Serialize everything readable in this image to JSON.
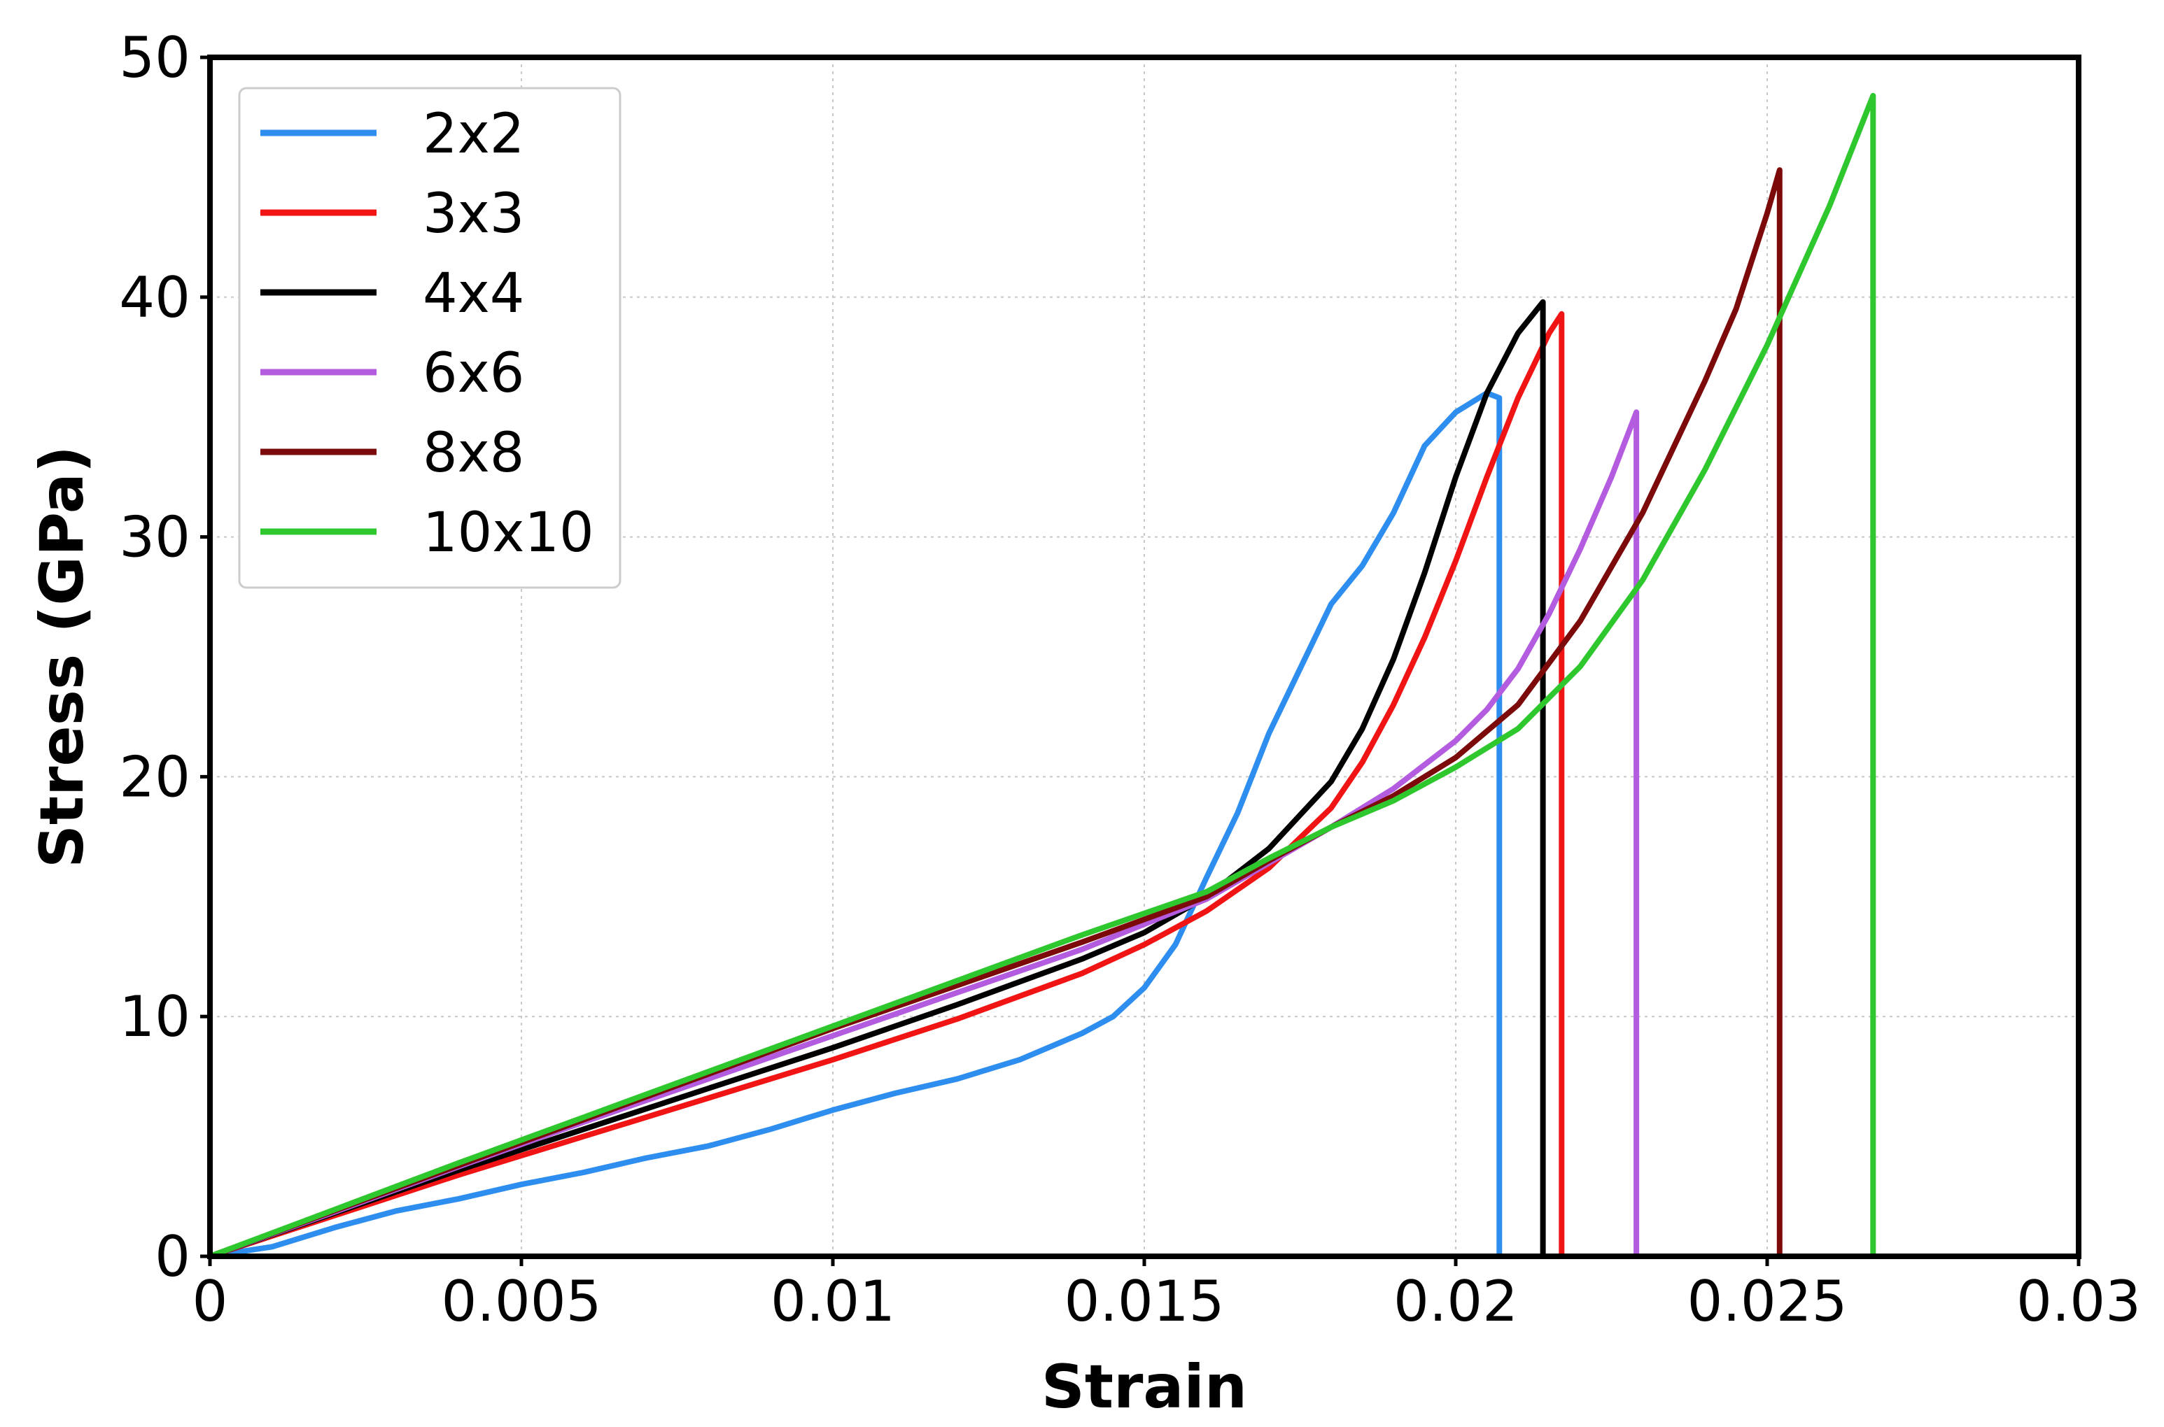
{
  "chart_data": {
    "type": "line",
    "title": "",
    "xlabel": "Strain",
    "ylabel": "Stress (GPa)",
    "xlim": [
      0,
      0.03
    ],
    "ylim": [
      0,
      50
    ],
    "xticks": [
      0,
      0.005,
      0.01,
      0.015,
      0.02,
      0.025,
      0.03
    ],
    "xtick_labels": [
      "0",
      "0.005",
      "0.01",
      "0.015",
      "0.02",
      "0.025",
      "0.03"
    ],
    "yticks": [
      0,
      10,
      20,
      30,
      40,
      50
    ],
    "ytick_labels": [
      "0",
      "10",
      "20",
      "30",
      "40",
      "50"
    ],
    "grid": true,
    "legend_position": "top-left",
    "series": [
      {
        "name": "2x2",
        "color": "#2e8ef0",
        "x": [
          0,
          0.001,
          0.002,
          0.003,
          0.004,
          0.005,
          0.006,
          0.007,
          0.008,
          0.009,
          0.01,
          0.011,
          0.012,
          0.013,
          0.014,
          0.0145,
          0.015,
          0.0155,
          0.016,
          0.0165,
          0.017,
          0.0175,
          0.018,
          0.0185,
          0.019,
          0.0195,
          0.02,
          0.0205,
          0.0207,
          0.0207
        ],
        "y": [
          0,
          0.4,
          1.2,
          1.9,
          2.4,
          3.0,
          3.5,
          4.1,
          4.6,
          5.3,
          6.1,
          6.8,
          7.4,
          8.2,
          9.3,
          10.0,
          11.2,
          13.0,
          15.8,
          18.5,
          21.8,
          24.5,
          27.2,
          28.8,
          31.0,
          33.8,
          35.2,
          36.0,
          35.8,
          0
        ]
      },
      {
        "name": "3x3",
        "color": "#f01414",
        "x": [
          0,
          0.002,
          0.004,
          0.006,
          0.008,
          0.01,
          0.012,
          0.014,
          0.015,
          0.016,
          0.017,
          0.018,
          0.0185,
          0.019,
          0.0195,
          0.02,
          0.0205,
          0.021,
          0.0215,
          0.0217,
          0.0217
        ],
        "y": [
          0,
          1.7,
          3.4,
          5.0,
          6.6,
          8.2,
          9.9,
          11.8,
          13.0,
          14.4,
          16.2,
          18.7,
          20.6,
          23.0,
          25.8,
          29.0,
          32.5,
          35.8,
          38.5,
          39.3,
          0
        ]
      },
      {
        "name": "4x4",
        "color": "#000000",
        "x": [
          0,
          0.002,
          0.004,
          0.006,
          0.008,
          0.01,
          0.012,
          0.014,
          0.015,
          0.016,
          0.017,
          0.018,
          0.0185,
          0.019,
          0.0195,
          0.02,
          0.0205,
          0.021,
          0.0214,
          0.0214
        ],
        "y": [
          0,
          1.8,
          3.6,
          5.3,
          7.0,
          8.7,
          10.5,
          12.4,
          13.5,
          15.0,
          17.0,
          19.8,
          22.0,
          24.9,
          28.5,
          32.5,
          36.0,
          38.5,
          39.8,
          0
        ]
      },
      {
        "name": "6x6",
        "color": "#b45ce0",
        "x": [
          0,
          0.002,
          0.004,
          0.006,
          0.008,
          0.01,
          0.012,
          0.014,
          0.016,
          0.017,
          0.018,
          0.019,
          0.02,
          0.0205,
          0.021,
          0.0215,
          0.022,
          0.0225,
          0.0229,
          0.0229
        ],
        "y": [
          0,
          1.85,
          3.75,
          5.6,
          7.4,
          9.2,
          11.0,
          12.8,
          14.9,
          16.4,
          17.9,
          19.5,
          21.5,
          22.8,
          24.5,
          26.8,
          29.5,
          32.5,
          35.2,
          0
        ]
      },
      {
        "name": "8x8",
        "color": "#7c0a0a",
        "x": [
          0,
          0.002,
          0.004,
          0.006,
          0.008,
          0.01,
          0.012,
          0.014,
          0.016,
          0.017,
          0.018,
          0.019,
          0.02,
          0.021,
          0.022,
          0.023,
          0.024,
          0.0245,
          0.025,
          0.0252,
          0.0252
        ],
        "y": [
          0,
          1.9,
          3.8,
          5.7,
          7.6,
          9.5,
          11.3,
          13.1,
          15.0,
          16.5,
          17.9,
          19.2,
          20.8,
          23.0,
          26.5,
          31.0,
          36.5,
          39.5,
          43.5,
          45.3,
          0
        ]
      },
      {
        "name": "10x10",
        "color": "#2ec82e",
        "x": [
          0,
          0.002,
          0.004,
          0.006,
          0.008,
          0.01,
          0.012,
          0.014,
          0.016,
          0.017,
          0.018,
          0.019,
          0.02,
          0.021,
          0.022,
          0.023,
          0.024,
          0.025,
          0.026,
          0.0267,
          0.0267
        ],
        "y": [
          0,
          1.95,
          3.9,
          5.8,
          7.7,
          9.6,
          11.5,
          13.4,
          15.2,
          16.6,
          17.9,
          19.0,
          20.4,
          22.0,
          24.6,
          28.2,
          32.8,
          38.0,
          43.8,
          48.4,
          0
        ]
      }
    ]
  }
}
